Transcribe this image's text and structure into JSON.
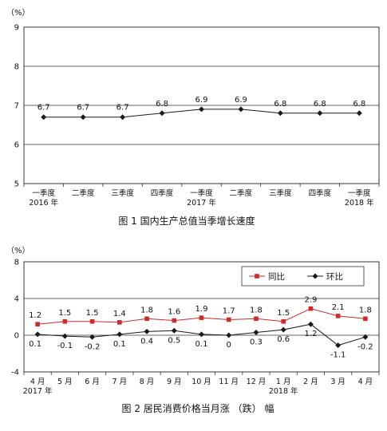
{
  "charts": [
    {
      "unit": "（%）",
      "caption": "图 1  国内生产总值当季增长速度",
      "chart_data": {
        "type": "line",
        "title": "图 1  国内生产总值当季增长速度",
        "ylim": [
          5,
          9
        ],
        "yticks": [
          5,
          6,
          7,
          8,
          9
        ],
        "grid": true,
        "categories": [
          {
            "line1": "一季度",
            "line2": "2016 年"
          },
          {
            "line1": "二季度",
            "line2": ""
          },
          {
            "line1": "三季度",
            "line2": ""
          },
          {
            "line1": "四季度",
            "line2": ""
          },
          {
            "line1": "一季度",
            "line2": "2017 年"
          },
          {
            "line1": "二季度",
            "line2": ""
          },
          {
            "line1": "三季度",
            "line2": ""
          },
          {
            "line1": "四季度",
            "line2": ""
          },
          {
            "line1": "一季度",
            "line2": "2018 年"
          }
        ],
        "series": [
          {
            "color": "#1a1a1a",
            "marker": "diamond",
            "values": [
              6.7,
              6.7,
              6.7,
              6.8,
              6.9,
              6.9,
              6.8,
              6.8,
              6.8
            ]
          }
        ]
      }
    },
    {
      "unit": "（%）",
      "caption": "图 2  居民消费价格当月涨  （跌） 幅",
      "legend": {
        "position": "top-right"
      },
      "chart_data": {
        "type": "line",
        "title": "图 2  居民消费价格当月涨  （跌） 幅",
        "ylim": [
          -4,
          8
        ],
        "yticks": [
          -4,
          0,
          4,
          8
        ],
        "grid": true,
        "categories": [
          {
            "line1": "4 月",
            "line2": "2017 年"
          },
          {
            "line1": "5 月",
            "line2": ""
          },
          {
            "line1": "6 月",
            "line2": ""
          },
          {
            "line1": "7 月",
            "line2": ""
          },
          {
            "line1": "8 月",
            "line2": ""
          },
          {
            "line1": "9 月",
            "line2": ""
          },
          {
            "line1": "10 月",
            "line2": ""
          },
          {
            "line1": "11 月",
            "line2": ""
          },
          {
            "line1": "12 月",
            "line2": ""
          },
          {
            "line1": "1 月",
            "line2": "2018 年"
          },
          {
            "line1": "2 月",
            "line2": ""
          },
          {
            "line1": "3 月",
            "line2": ""
          },
          {
            "line1": "4 月",
            "line2": ""
          }
        ],
        "series": [
          {
            "name": "同比",
            "color": "#d12a2a",
            "marker": "square",
            "values": [
              1.2,
              1.5,
              1.5,
              1.4,
              1.8,
              1.6,
              1.9,
              1.7,
              1.8,
              1.5,
              2.9,
              2.1,
              1.8
            ]
          },
          {
            "name": "环比",
            "color": "#1a1a1a",
            "marker": "diamond",
            "values": [
              0.1,
              -0.1,
              -0.2,
              0.1,
              0.4,
              0.5,
              0.1,
              0,
              0.3,
              0.6,
              1.2,
              -1.1,
              -0.2
            ]
          }
        ]
      }
    }
  ]
}
